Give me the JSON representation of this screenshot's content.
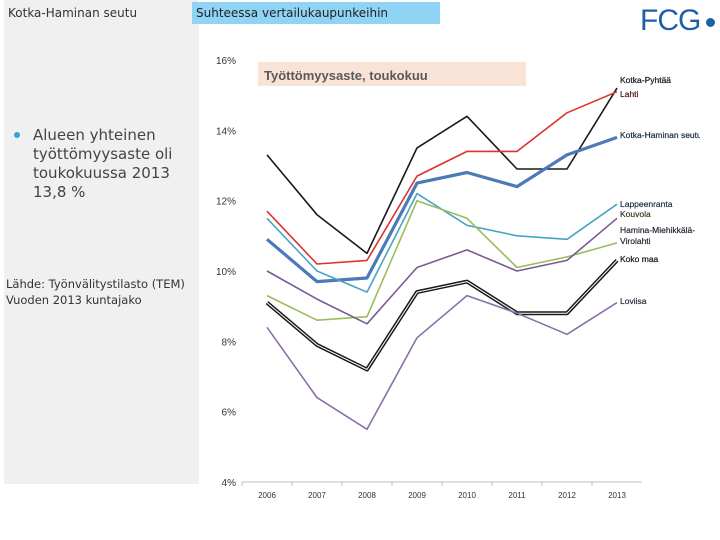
{
  "header": {
    "tab_region": "Kotka-Haminan seutu",
    "tab_compare": "Suhteessa vertailukaupunkeihin",
    "logo": "FCG"
  },
  "sidebar": {
    "bullet": "Alueen yhteinen työttömyysaste oli toukokuussa 2013 13,8 %",
    "source_line1": "Lähde: Työnvälitystilasto (TEM)",
    "source_line2": "Vuoden 2013 kuntajako"
  },
  "chart_data": {
    "type": "line",
    "title": "Työttömyysaste, toukokuu",
    "x": [
      "2006",
      "2007",
      "2008",
      "2009",
      "2010",
      "2011",
      "2012",
      "2013"
    ],
    "yticks": [
      "16%",
      "14%",
      "12%",
      "10%",
      "8%",
      "6%",
      "4%"
    ],
    "ylim": [
      4,
      16
    ],
    "series": [
      {
        "name": "Kotka-Pyhtää",
        "color": "#1a1a1a",
        "width": 1.6,
        "values": [
          13.3,
          11.6,
          10.5,
          13.5,
          14.4,
          12.9,
          12.9,
          15.2
        ]
      },
      {
        "name": "Lahti",
        "color": "#e03030",
        "width": 1.6,
        "values": [
          11.7,
          10.2,
          10.3,
          12.7,
          13.4,
          13.4,
          14.5,
          15.1
        ]
      },
      {
        "name": "Kotka-Haminan seutu",
        "color": "#4a7ab8",
        "width": 3.2,
        "values": [
          10.9,
          9.7,
          9.8,
          12.5,
          12.8,
          12.4,
          13.3,
          13.8
        ]
      },
      {
        "name": "Lappeenranta",
        "color": "#4aa3c8",
        "width": 1.6,
        "values": [
          11.5,
          10.0,
          9.4,
          12.2,
          11.3,
          11.0,
          10.9,
          11.9
        ]
      },
      {
        "name": "Kouvola",
        "color": "#9abd5a",
        "width": 1.6,
        "values": [
          9.3,
          8.6,
          8.7,
          12.0,
          11.5,
          10.1,
          10.4,
          10.8
        ]
      },
      {
        "name": "Hamina-Miehikkälä-Virolahti",
        "color": "#7a5a94",
        "width": 1.6,
        "values": [
          10.0,
          9.2,
          8.5,
          10.1,
          10.6,
          10.0,
          10.3,
          11.5
        ]
      },
      {
        "name": "Koko maa",
        "color": "#1a1a1a",
        "width": 3.0,
        "double": true,
        "values": [
          9.1,
          7.9,
          7.2,
          9.4,
          9.7,
          8.8,
          8.8,
          10.3
        ]
      },
      {
        "name": "Loviisa",
        "color": "#8a70a8",
        "width": 1.6,
        "values": [
          8.4,
          6.4,
          5.5,
          8.1,
          9.3,
          8.8,
          8.2,
          9.1
        ]
      }
    ],
    "legend": [
      {
        "label": "Kotka-Pyhtää",
        "color": "#1a1a1a"
      },
      {
        "label": "Lahti",
        "color": "#e03030"
      },
      {
        "label": "Kotka-Haminan seutu",
        "color": "#4a7ab8"
      },
      {
        "label": "Lappeenranta",
        "color": "#4aa3c8"
      },
      {
        "label": "Kouvola",
        "color": "#9abd5a"
      },
      {
        "label": "Hamina-Miehikkälä-",
        "color": "#7a5a94"
      },
      {
        "label": "Virolahti",
        "color": "#7a5a94"
      },
      {
        "label": "Koko maa",
        "color": "#1a1a1a"
      },
      {
        "label": "Loviisa",
        "color": "#8a70a8"
      }
    ]
  }
}
